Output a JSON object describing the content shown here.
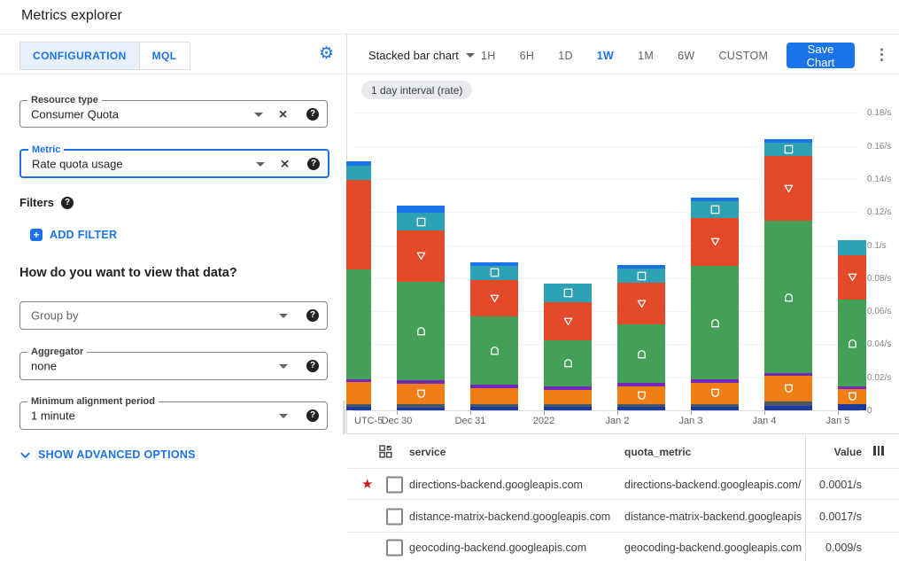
{
  "header": {
    "title": "Metrics explorer"
  },
  "left_panel": {
    "tabs": [
      {
        "label": "CONFIGURATION"
      },
      {
        "label": "MQL"
      }
    ],
    "active_tab": "CONFIGURATION",
    "resource_type": {
      "label": "Resource type",
      "value": "Consumer Quota"
    },
    "metric": {
      "label": "Metric",
      "value": "Rate quota usage"
    },
    "filters": {
      "label": "Filters",
      "add_button": "ADD FILTER"
    },
    "view_heading": "How do you want to view that data?",
    "group_by": {
      "placeholder": "Group by"
    },
    "aggregator": {
      "label": "Aggregator",
      "value": "none"
    },
    "alignment": {
      "label": "Minimum alignment period",
      "value": "1 minute"
    },
    "advanced_toggle": "SHOW ADVANCED OPTIONS"
  },
  "toolbar": {
    "chart_type": "Stacked bar chart",
    "ranges": [
      "1H",
      "6H",
      "1D",
      "1W",
      "1M",
      "6W",
      "CUSTOM"
    ],
    "active_range": "1W",
    "save_button": "Save Chart"
  },
  "interval_chip": "1 day interval (rate)",
  "chart_data": {
    "type": "bar",
    "stacked": true,
    "unit": "/s",
    "x_axis_prefix": "UTC-5",
    "categories": [
      "",
      "Dec 30",
      "Dec 31",
      "2022",
      "Jan 2",
      "Jan 3",
      "Jan 4",
      "Jan 5"
    ],
    "ylim": [
      0,
      0.18
    ],
    "ytick_step": 0.02,
    "ytick_labels": [
      "0",
      "0.02/s",
      "0.04/s",
      "0.06/s",
      "0.08/s",
      "0.1/s",
      "0.12/s",
      "0.14/s",
      "0.16/s",
      "0.18/s"
    ],
    "grid": true,
    "series": [
      {
        "name": "navy-band",
        "color": "#1f3a9e",
        "marker": null,
        "values": [
          0.002,
          0.0016,
          0.002,
          0.002,
          0.002,
          0.002,
          0.0027,
          0.0037
        ],
        "marker_shown": [
          0,
          0,
          0,
          0,
          0,
          0,
          0,
          0
        ]
      },
      {
        "name": "slate-band",
        "color": "#475866",
        "marker": null,
        "values": [
          0.002,
          0.0021,
          0.0015,
          0.0015,
          0.0015,
          0.002,
          0.0026,
          0.0
        ],
        "marker_shown": [
          0,
          0,
          0,
          0,
          0,
          0,
          0,
          0
        ]
      },
      {
        "name": "orange-band",
        "color": "#f07e17",
        "marker": "cup",
        "values": [
          0.013,
          0.0122,
          0.01,
          0.009,
          0.011,
          0.0125,
          0.0154,
          0.009
        ],
        "marker_shown": [
          0,
          1,
          0,
          0,
          1,
          1,
          1,
          1
        ]
      },
      {
        "name": "purple-band",
        "color": "#7627bb",
        "marker": null,
        "values": [
          0.002,
          0.0021,
          0.002,
          0.002,
          0.002,
          0.002,
          0.0016,
          0.0016
        ],
        "marker_shown": [
          0,
          0,
          0,
          0,
          0,
          0,
          0,
          0
        ]
      },
      {
        "name": "green-band",
        "color": "#43a056",
        "marker": "arch",
        "values": [
          0.0665,
          0.06,
          0.0415,
          0.028,
          0.0355,
          0.069,
          0.0923,
          0.0527
        ],
        "marker_shown": [
          0,
          1,
          1,
          1,
          1,
          1,
          1,
          1
        ]
      },
      {
        "name": "red-band",
        "color": "#e34a2a",
        "marker": "triangle-down",
        "values": [
          0.054,
          0.0308,
          0.022,
          0.023,
          0.025,
          0.029,
          0.0394,
          0.027
        ],
        "marker_shown": [
          0,
          1,
          1,
          1,
          1,
          1,
          1,
          1
        ]
      },
      {
        "name": "teal-band",
        "color": "#2ea2b5",
        "marker": "square",
        "values": [
          0.0085,
          0.0106,
          0.0086,
          0.011,
          0.009,
          0.01,
          0.008,
          0.009
        ],
        "marker_shown": [
          0,
          1,
          1,
          1,
          1,
          1,
          1,
          0
        ]
      },
      {
        "name": "blue-cap",
        "color": "#1a73e8",
        "marker": null,
        "values": [
          0.0025,
          0.0046,
          0.002,
          0.0,
          0.002,
          0.002,
          0.002,
          0.0
        ],
        "marker_shown": [
          0,
          0,
          0,
          0,
          0,
          0,
          0,
          0
        ]
      }
    ]
  },
  "table": {
    "columns": {
      "service": "service",
      "quota_metric": "quota_metric",
      "value": "Value"
    },
    "rows": [
      {
        "marker": "star",
        "marker_color": "#c5221f",
        "checked": false,
        "service": "directions-backend.googleapis.com",
        "quota_metric": "directions-backend.googleapis.com/billabl",
        "value": "0.0001/s"
      },
      {
        "marker": "circle",
        "marker_color": "#1a73e8",
        "checked": false,
        "service": "distance-matrix-backend.googleapis.com",
        "quota_metric": "distance-matrix-backend.googleapis.com/l",
        "value": "0.0017/s"
      },
      {
        "marker": "square",
        "marker_color": "#2ea2b5",
        "checked": false,
        "service": "geocoding-backend.googleapis.com",
        "quota_metric": "geocoding-backend.googleapis.com/billab",
        "value": "0.009/s"
      }
    ]
  },
  "colors": {
    "accent": "#1a73e8"
  }
}
